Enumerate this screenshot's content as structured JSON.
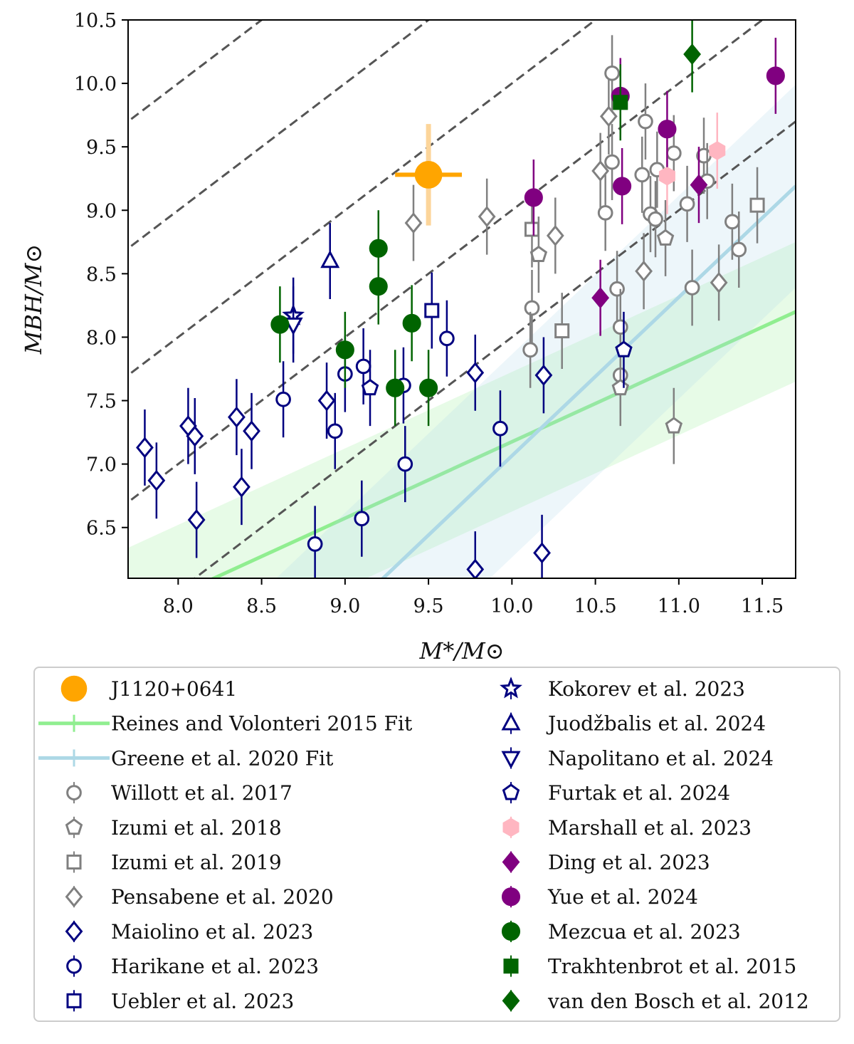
{
  "chart_data": {
    "type": "scatter",
    "xlabel": "M*/M⊙",
    "ylabel": "MBH/M⊙",
    "xlim": [
      7.7,
      11.7
    ],
    "ylim": [
      6.1,
      10.5
    ],
    "x_ticks": [
      {
        "value": 8.0,
        "label": "8.0"
      },
      {
        "value": 8.5,
        "label": "8.5"
      },
      {
        "value": 9.0,
        "label": "9.0"
      },
      {
        "value": 9.5,
        "label": "9.5"
      },
      {
        "value": 10.0,
        "label": "10.0"
      },
      {
        "value": 10.5,
        "label": "10.5"
      },
      {
        "value": 11.0,
        "label": "11.0"
      },
      {
        "value": 11.5,
        "label": "11.5"
      }
    ],
    "y_ticks": [
      {
        "value": 6.5,
        "label": "6.5"
      },
      {
        "value": 7.0,
        "label": "7.0"
      },
      {
        "value": 7.5,
        "label": "7.5"
      },
      {
        "value": 8.0,
        "label": "8.0"
      },
      {
        "value": 8.5,
        "label": "8.5"
      },
      {
        "value": 9.0,
        "label": "9.0"
      },
      {
        "value": 9.5,
        "label": "9.5"
      },
      {
        "value": 10.0,
        "label": "10.0"
      },
      {
        "value": 10.5,
        "label": "10.5"
      }
    ],
    "reference_lines": {
      "slope": 1.0,
      "intercepts": [
        -2.0,
        -1.0,
        0.0,
        1.0,
        2.0
      ],
      "style": "dashed",
      "color": "#555555"
    },
    "fits": [
      {
        "name": "Reines and Volonteri 2015 Fit",
        "color": "#90ee90",
        "points": [
          [
            7.7,
            5.79
          ],
          [
            11.7,
            8.2
          ]
        ],
        "band": 0.55
      },
      {
        "name": "Greene et al. 2020 Fit",
        "color": "#add8e6",
        "points": [
          [
            7.7,
            4.19
          ],
          [
            11.7,
            9.19
          ]
        ],
        "band": 0.8
      }
    ],
    "legend_position": "below",
    "series": [
      {
        "name": "J1120+0641",
        "marker": "circle",
        "color": "#ffa500",
        "filled": true,
        "size": 34,
        "points": [
          {
            "x": 9.5,
            "y": 9.28,
            "xerr": 0.2,
            "yerr": 0.4
          }
        ]
      },
      {
        "name": "Reines and Volonteri 2015 Fit",
        "marker": "fitline",
        "color": "#90ee90",
        "points": []
      },
      {
        "name": "Greene et al. 2020 Fit",
        "marker": "fitline",
        "color": "#add8e6",
        "points": []
      },
      {
        "name": "Willott et al. 2017",
        "marker": "circle",
        "color": "#808080",
        "filled": false,
        "points": [
          {
            "x": 10.6,
            "y": 10.08,
            "yerr": 0.3
          },
          {
            "x": 10.8,
            "y": 9.7,
            "yerr": 0.3
          },
          {
            "x": 10.6,
            "y": 9.38,
            "yerr": 0.3
          },
          {
            "x": 10.97,
            "y": 9.45,
            "yerr": 0.3
          },
          {
            "x": 11.15,
            "y": 9.43,
            "yerr": 0.3
          },
          {
            "x": 10.87,
            "y": 9.32,
            "yerr": 0.3
          },
          {
            "x": 10.78,
            "y": 9.28,
            "yerr": 0.3
          },
          {
            "x": 11.17,
            "y": 9.23,
            "yerr": 0.3
          },
          {
            "x": 11.05,
            "y": 9.05,
            "yerr": 0.3
          },
          {
            "x": 10.56,
            "y": 8.98,
            "yerr": 0.3
          },
          {
            "x": 10.83,
            "y": 8.97,
            "yerr": 0.3
          },
          {
            "x": 10.86,
            "y": 8.93,
            "yerr": 0.3
          },
          {
            "x": 11.32,
            "y": 8.91,
            "yerr": 0.3
          },
          {
            "x": 11.36,
            "y": 8.69,
            "yerr": 0.3
          },
          {
            "x": 11.08,
            "y": 8.39,
            "yerr": 0.3
          },
          {
            "x": 10.63,
            "y": 8.38,
            "yerr": 0.3
          },
          {
            "x": 10.12,
            "y": 8.23,
            "yerr": 0.3
          },
          {
            "x": 10.65,
            "y": 8.08,
            "yerr": 0.3
          },
          {
            "x": 10.11,
            "y": 7.9,
            "yerr": 0.3
          },
          {
            "x": 10.65,
            "y": 7.7,
            "yerr": 0.3
          }
        ]
      },
      {
        "name": "Izumi et al. 2018",
        "marker": "pentagon",
        "color": "#808080",
        "filled": false,
        "points": [
          {
            "x": 10.92,
            "y": 8.78,
            "yerr": 0.3
          },
          {
            "x": 10.16,
            "y": 8.65,
            "yerr": 0.3
          },
          {
            "x": 10.65,
            "y": 7.6,
            "yerr": 0.3
          },
          {
            "x": 10.97,
            "y": 7.3,
            "yerr": 0.3
          }
        ]
      },
      {
        "name": "Izumi et al. 2019",
        "marker": "square",
        "color": "#808080",
        "filled": false,
        "points": [
          {
            "x": 11.47,
            "y": 9.04,
            "yerr": 0.3
          },
          {
            "x": 10.12,
            "y": 8.85,
            "yerr": 0.3
          },
          {
            "x": 10.3,
            "y": 8.05,
            "yerr": 0.3
          }
        ]
      },
      {
        "name": "Pensabene et al. 2020",
        "marker": "diamond",
        "color": "#808080",
        "filled": false,
        "points": [
          {
            "x": 10.58,
            "y": 9.74,
            "yerr": 0.3
          },
          {
            "x": 10.53,
            "y": 9.31,
            "yerr": 0.3
          },
          {
            "x": 9.41,
            "y": 8.9,
            "yerr": 0.3
          },
          {
            "x": 9.85,
            "y": 8.95,
            "yerr": 0.3
          },
          {
            "x": 10.26,
            "y": 8.8,
            "yerr": 0.3
          },
          {
            "x": 10.79,
            "y": 8.52,
            "yerr": 0.3
          },
          {
            "x": 11.24,
            "y": 8.43,
            "yerr": 0.3
          }
        ]
      },
      {
        "name": "Maiolino et al. 2023",
        "marker": "diamond",
        "color": "#000080",
        "filled": false,
        "points": [
          {
            "x": 9.78,
            "y": 7.72,
            "yerr": 0.3
          },
          {
            "x": 10.19,
            "y": 7.7,
            "yerr": 0.3
          },
          {
            "x": 8.89,
            "y": 7.5,
            "yerr": 0.3
          },
          {
            "x": 8.35,
            "y": 7.37,
            "yerr": 0.3
          },
          {
            "x": 8.06,
            "y": 7.3,
            "yerr": 0.3
          },
          {
            "x": 8.44,
            "y": 7.26,
            "yerr": 0.3
          },
          {
            "x": 8.1,
            "y": 7.22,
            "yerr": 0.3
          },
          {
            "x": 7.8,
            "y": 7.13,
            "yerr": 0.3
          },
          {
            "x": 7.87,
            "y": 6.87,
            "yerr": 0.3
          },
          {
            "x": 8.38,
            "y": 6.82,
            "yerr": 0.3
          },
          {
            "x": 8.11,
            "y": 6.56,
            "yerr": 0.3
          },
          {
            "x": 9.78,
            "y": 6.17,
            "yerr": 0.3
          },
          {
            "x": 10.18,
            "y": 6.3,
            "yerr": 0.3
          }
        ]
      },
      {
        "name": "Harikane et al. 2023",
        "marker": "circle",
        "color": "#000080",
        "filled": false,
        "points": [
          {
            "x": 9.61,
            "y": 7.99,
            "yerr": 0.3
          },
          {
            "x": 9.11,
            "y": 7.77,
            "yerr": 0.3
          },
          {
            "x": 9.0,
            "y": 7.71,
            "yerr": 0.3
          },
          {
            "x": 9.35,
            "y": 7.62,
            "yerr": 0.3
          },
          {
            "x": 8.63,
            "y": 7.51,
            "yerr": 0.3
          },
          {
            "x": 8.94,
            "y": 7.26,
            "yerr": 0.3
          },
          {
            "x": 9.93,
            "y": 7.28,
            "yerr": 0.3
          },
          {
            "x": 9.36,
            "y": 7.0,
            "yerr": 0.3
          },
          {
            "x": 9.1,
            "y": 6.57,
            "yerr": 0.3
          },
          {
            "x": 8.82,
            "y": 6.37,
            "yerr": 0.3
          }
        ]
      },
      {
        "name": "Uebler et al. 2023",
        "marker": "square",
        "color": "#000080",
        "filled": false,
        "points": [
          {
            "x": 9.52,
            "y": 8.21,
            "yerr": 0.3
          }
        ]
      },
      {
        "name": "Kokorev et al. 2023",
        "marker": "star",
        "color": "#000080",
        "filled": false,
        "points": [
          {
            "x": 8.69,
            "y": 8.17,
            "yerr": 0.3
          }
        ]
      },
      {
        "name": "Juodžbalis et al. 2024",
        "marker": "triangle-up",
        "color": "#000080",
        "filled": false,
        "points": [
          {
            "x": 8.91,
            "y": 8.6,
            "yerr": 0.3
          }
        ]
      },
      {
        "name": "Napolitano et al. 2024",
        "marker": "triangle-down",
        "color": "#000080",
        "filled": false,
        "points": [
          {
            "x": 8.69,
            "y": 8.1,
            "yerr": 0.3
          }
        ]
      },
      {
        "name": "Furtak et al. 2024",
        "marker": "pentagon",
        "color": "#000080",
        "filled": false,
        "points": [
          {
            "x": 9.15,
            "y": 7.6,
            "yerr": 0.3
          },
          {
            "x": 10.67,
            "y": 7.9,
            "yerr": 0.3
          }
        ]
      },
      {
        "name": "Marshall et al. 2023",
        "marker": "hexagon",
        "color": "#ffb6c1",
        "filled": true,
        "points": [
          {
            "x": 11.23,
            "y": 9.47,
            "yerr": 0.3
          },
          {
            "x": 10.93,
            "y": 9.27,
            "yerr": 0.3
          }
        ]
      },
      {
        "name": "Ding et al. 2023",
        "marker": "diamond",
        "color": "#800080",
        "filled": true,
        "points": [
          {
            "x": 10.53,
            "y": 8.31,
            "yerr": 0.3
          },
          {
            "x": 11.12,
            "y": 9.2,
            "yerr": 0.3
          }
        ]
      },
      {
        "name": "Yue et al. 2024",
        "marker": "circle",
        "color": "#800080",
        "filled": true,
        "points": [
          {
            "x": 11.58,
            "y": 10.06,
            "yerr": 0.3
          },
          {
            "x": 10.65,
            "y": 9.9,
            "yerr": 0.3
          },
          {
            "x": 10.93,
            "y": 9.64,
            "yerr": 0.3
          },
          {
            "x": 10.66,
            "y": 9.19,
            "yerr": 0.3
          },
          {
            "x": 10.13,
            "y": 9.1,
            "yerr": 0.3
          }
        ]
      },
      {
        "name": "Mezcua et al. 2023",
        "marker": "circle",
        "color": "#006400",
        "filled": true,
        "points": [
          {
            "x": 9.2,
            "y": 8.7,
            "yerr": 0.3
          },
          {
            "x": 9.2,
            "y": 8.4,
            "yerr": 0.3
          },
          {
            "x": 8.61,
            "y": 8.1,
            "yerr": 0.3
          },
          {
            "x": 9.4,
            "y": 8.11,
            "yerr": 0.3
          },
          {
            "x": 9.0,
            "y": 7.9,
            "yerr": 0.3
          },
          {
            "x": 9.3,
            "y": 7.6,
            "yerr": 0.3
          },
          {
            "x": 9.5,
            "y": 7.6,
            "yerr": 0.3
          }
        ]
      },
      {
        "name": "Trakhtenbrot et al. 2015",
        "marker": "square",
        "color": "#006400",
        "filled": true,
        "points": [
          {
            "x": 10.65,
            "y": 9.85,
            "yerr": 0.3
          }
        ]
      },
      {
        "name": "van den Bosch et al. 2012",
        "marker": "diamond",
        "color": "#006400",
        "filled": true,
        "points": [
          {
            "x": 11.08,
            "y": 10.23,
            "yerr": 0.3
          }
        ]
      }
    ]
  }
}
